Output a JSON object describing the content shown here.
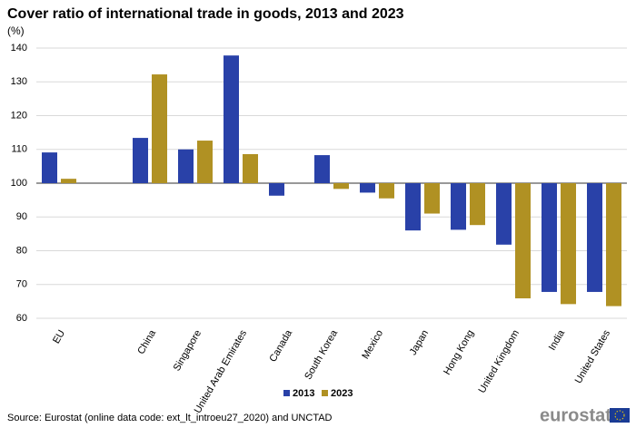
{
  "chart_data": {
    "type": "bar",
    "title": "Cover ratio of international trade in goods, 2013 and 2023",
    "unit_label": "(%)",
    "categories": [
      "EU",
      null,
      "China",
      "Singapore",
      "United Arab Emirates",
      "Canada",
      "South Korea",
      "Mexico",
      "Japan",
      "Hong Kong",
      "United Kingdom",
      "India",
      "United States"
    ],
    "series": [
      {
        "name": "2013",
        "color": "#2941a8",
        "values": [
          109.1,
          null,
          113.4,
          110.0,
          137.8,
          96.3,
          108.3,
          97.2,
          86.0,
          86.2,
          81.8,
          67.8,
          67.8
        ]
      },
      {
        "name": "2023",
        "color": "#b09123",
        "values": [
          101.3,
          null,
          132.2,
          112.6,
          108.6,
          null,
          98.3,
          95.5,
          91.0,
          87.6,
          65.9,
          64.2,
          63.6
        ]
      }
    ],
    "baseline": 100,
    "ylim": [
      60,
      140
    ],
    "yticks": [
      60,
      70,
      80,
      90,
      100,
      110,
      120,
      130,
      140
    ],
    "grid": true,
    "legend": "bottom",
    "source": "Source: Eurostat (online data code: ext_lt_introeu27_2020) and UNCTAD",
    "logo": "eurostat"
  }
}
